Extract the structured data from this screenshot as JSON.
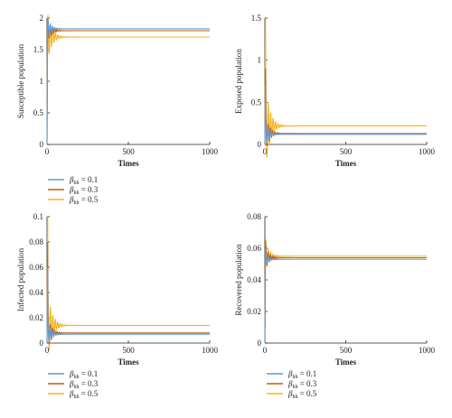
{
  "colors": {
    "s1": "#5b9bd5",
    "s2": "#c55a11",
    "s3": "#f2b320"
  },
  "chart_data": [
    {
      "type": "line",
      "ylabel": "Susceptible population",
      "xlabel": "Times",
      "xlim": [
        0,
        1000
      ],
      "ylim": [
        0,
        2
      ],
      "xticks": [
        "0",
        "500",
        "1000"
      ],
      "yticks": [
        "0",
        "0.5",
        "1",
        "1.5",
        "2"
      ],
      "legend": [
        "= 0.1",
        "= 0.3",
        "= 0.5"
      ],
      "series": [
        {
          "name": "βhh = 0.1",
          "start": 0.0,
          "peak": 2.0,
          "steady": 1.83,
          "amp": 0.14,
          "decay": 22,
          "period": 14
        },
        {
          "name": "βhh = 0.3",
          "start": 0.0,
          "peak": 1.98,
          "steady": 1.8,
          "amp": 0.16,
          "decay": 24,
          "period": 14
        },
        {
          "name": "βhh = 0.5",
          "start": 0.3,
          "peak": 1.95,
          "steady": 1.7,
          "amp": 0.35,
          "decay": 26,
          "period": 15
        }
      ]
    },
    {
      "type": "line",
      "ylabel": "Exposed population",
      "xlabel": "Times",
      "xlim": [
        0,
        1000
      ],
      "ylim": [
        0,
        1.5
      ],
      "xticks": [
        "0",
        "500",
        "1000"
      ],
      "yticks": [
        "0",
        "0.5",
        "1",
        "1.5"
      ],
      "legend": [
        "= 0.1",
        "= 0.3",
        "= 0.5"
      ],
      "series": [
        {
          "name": "βhh = 0.1",
          "start": 0.0,
          "peak": 0.7,
          "steady": 0.12,
          "amp": 0.12,
          "decay": 22,
          "period": 14
        },
        {
          "name": "βhh = 0.3",
          "start": 0.0,
          "peak": 0.9,
          "steady": 0.13,
          "amp": 0.2,
          "decay": 24,
          "period": 14
        },
        {
          "name": "βhh = 0.5",
          "start": 0.0,
          "peak": 1.5,
          "steady": 0.22,
          "amp": 0.5,
          "decay": 26,
          "period": 15
        }
      ]
    },
    {
      "type": "line",
      "ylabel": "Infected population",
      "xlabel": "Times",
      "xlim": [
        0,
        1000
      ],
      "ylim": [
        0,
        0.1
      ],
      "xticks": [
        "0",
        "500",
        "1000"
      ],
      "yticks": [
        "0",
        "0.02",
        "0.04",
        "0.06",
        "0.08",
        "0.1"
      ],
      "legend": [
        "= 0.1",
        "= 0.3",
        "= 0.5"
      ],
      "series": [
        {
          "name": "βhh = 0.1",
          "start": 0.0,
          "peak": 0.06,
          "steady": 0.007,
          "amp": 0.008,
          "decay": 22,
          "period": 14
        },
        {
          "name": "βhh = 0.3",
          "start": 0.0,
          "peak": 0.08,
          "steady": 0.008,
          "amp": 0.012,
          "decay": 24,
          "period": 14
        },
        {
          "name": "βhh = 0.5",
          "start": 0.0,
          "peak": 0.1,
          "steady": 0.014,
          "amp": 0.026,
          "decay": 26,
          "period": 15
        }
      ]
    },
    {
      "type": "line",
      "ylabel": "Recovered population",
      "xlabel": "Times",
      "xlim": [
        0,
        1000
      ],
      "ylim": [
        0,
        0.08
      ],
      "xticks": [
        "0",
        "500",
        "1000"
      ],
      "yticks": [
        "0",
        "0.02",
        "0.04",
        "0.06",
        "0.08"
      ],
      "legend": [
        "= 0.1",
        "= 0.3",
        "= 0.5"
      ],
      "series": [
        {
          "name": "βhh = 0.1",
          "start": 0.0,
          "peak": 0.06,
          "steady": 0.053,
          "amp": 0.003,
          "decay": 22,
          "period": 14
        },
        {
          "name": "βhh = 0.3",
          "start": 0.0,
          "peak": 0.065,
          "steady": 0.054,
          "amp": 0.006,
          "decay": 24,
          "period": 14
        },
        {
          "name": "βhh = 0.5",
          "start": 0.0,
          "peak": 0.067,
          "steady": 0.055,
          "amp": 0.008,
          "decay": 26,
          "period": 15
        }
      ]
    }
  ]
}
